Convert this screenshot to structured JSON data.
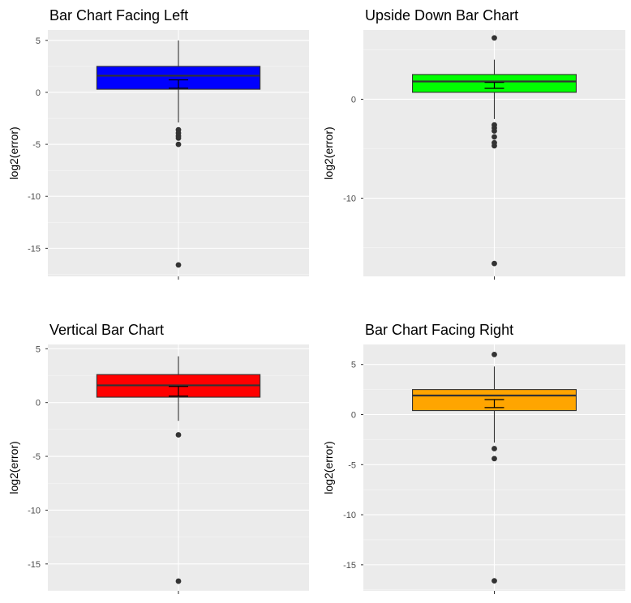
{
  "chart_data": [
    {
      "type": "box",
      "title": "Bar Chart Facing Left",
      "xlabel": "",
      "ylabel": "log2(error)",
      "ylim": [
        -17.7,
        6.0
      ],
      "yticks": [
        5,
        0,
        -5,
        -10,
        -15
      ],
      "ytick_labels": [
        "5",
        "0",
        "-5",
        "-10",
        "-15"
      ],
      "fill": "#0000FF",
      "box": {
        "q1": 0.3,
        "median": 1.6,
        "q3": 2.5,
        "whisker_low": -2.9,
        "whisker_high": 5.0
      },
      "outliers": [
        -3.6,
        -3.9,
        -4.2,
        -4.4,
        -5.0,
        -16.6
      ],
      "mean_ci": {
        "low": 0.4,
        "mean": 0.8,
        "high": 1.2
      }
    },
    {
      "type": "box",
      "title": "Upside Down Bar Chart",
      "xlabel": "",
      "ylabel": "log2(error)",
      "ylim": [
        -17.9,
        7.0
      ],
      "yticks": [
        0,
        -10
      ],
      "ytick_labels": [
        "0",
        "-10"
      ],
      "fill": "#00FF00",
      "box": {
        "q1": 0.7,
        "median": 1.8,
        "q3": 2.5,
        "whisker_low": -2.0,
        "whisker_high": 4.0
      },
      "outliers": [
        6.2,
        -2.6,
        -2.9,
        -3.2,
        -3.8,
        -4.4,
        -4.7,
        -16.6
      ],
      "mean_ci": {
        "low": 1.1,
        "mean": 1.4,
        "high": 1.7
      }
    },
    {
      "type": "box",
      "title": "Vertical Bar Chart",
      "xlabel": "",
      "ylabel": "log2(error)",
      "ylim": [
        -17.5,
        5.4
      ],
      "yticks": [
        5,
        0,
        -5,
        -10,
        -15
      ],
      "ytick_labels": [
        "5",
        "0",
        "-5",
        "-10",
        "-15"
      ],
      "fill": "#FF0000",
      "box": {
        "q1": 0.5,
        "median": 1.6,
        "q3": 2.6,
        "whisker_low": -1.7,
        "whisker_high": 4.3
      },
      "outliers": [
        -3.0,
        -16.6
      ],
      "mean_ci": {
        "low": 0.6,
        "mean": 1.0,
        "high": 1.5
      }
    },
    {
      "type": "box",
      "title": "Bar Chart Facing Right",
      "xlabel": "",
      "ylabel": "log2(error)",
      "ylim": [
        -17.6,
        7.0
      ],
      "yticks": [
        5,
        0,
        -5,
        -10,
        -15
      ],
      "ytick_labels": [
        "5",
        "0",
        "-5",
        "-10",
        "-15"
      ],
      "fill": "#FFA500",
      "box": {
        "q1": 0.4,
        "median": 1.9,
        "q3": 2.5,
        "whisker_low": -2.8,
        "whisker_high": 4.8
      },
      "outliers": [
        6.0,
        -3.4,
        -4.4,
        -16.6
      ],
      "mean_ci": {
        "low": 0.7,
        "mean": 1.1,
        "high": 1.5
      }
    }
  ]
}
